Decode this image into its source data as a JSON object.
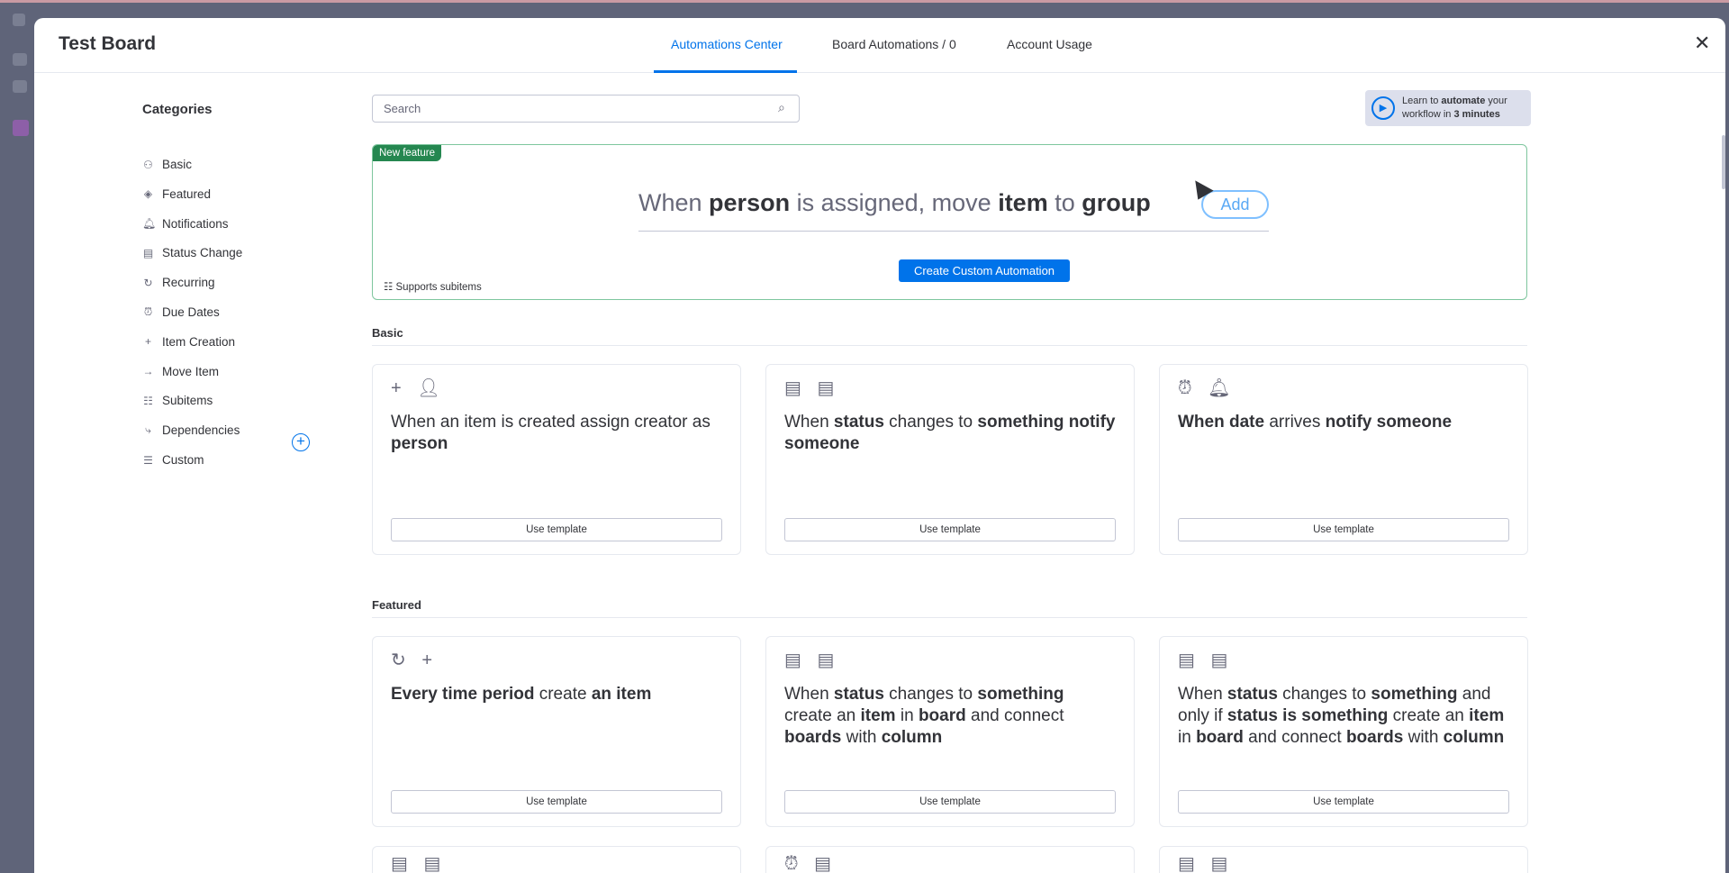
{
  "header": {
    "title": "Test Board",
    "tabs": [
      {
        "label": "Automations Center",
        "active": true
      },
      {
        "label": "Board Automations / 0"
      },
      {
        "label": "Account Usage"
      }
    ],
    "close": "✕"
  },
  "categories": {
    "title": "Categories",
    "items": [
      {
        "label": "Basic",
        "icon": "⚇"
      },
      {
        "label": "Featured",
        "icon": "◈"
      },
      {
        "label": "Notifications",
        "icon": "🔔︎"
      },
      {
        "label": "Status Change",
        "icon": "▤"
      },
      {
        "label": "Recurring",
        "icon": "↻"
      },
      {
        "label": "Due Dates",
        "icon": "⏰︎"
      },
      {
        "label": "Item Creation",
        "icon": "+"
      },
      {
        "label": "Move Item",
        "icon": "→"
      },
      {
        "label": "Subitems",
        "icon": "☷"
      },
      {
        "label": "Dependencies",
        "icon": "⤷"
      },
      {
        "label": "Custom",
        "icon": "☰"
      }
    ],
    "add": "+"
  },
  "search": {
    "placeholder": "Search"
  },
  "learn": {
    "parts": [
      {
        "t": "Learn to "
      },
      {
        "t": "automate",
        "b": true
      },
      {
        "t": " your workflow in "
      },
      {
        "t": "3 minutes",
        "b": true
      }
    ]
  },
  "feature": {
    "badge": "New feature",
    "sentence": [
      {
        "t": "When "
      },
      {
        "t": "person",
        "b": true
      },
      {
        "t": " is assigned, move "
      },
      {
        "t": "item",
        "b": true
      },
      {
        "t": " to "
      },
      {
        "t": "group",
        "b": true
      }
    ],
    "add": "Add",
    "create": "Create Custom Automation",
    "supports": "Supports subitems"
  },
  "sections": [
    {
      "title": "Basic",
      "cards": [
        {
          "icons": "+ 👤︎",
          "text": [
            {
              "t": "When an item is created assign creator as "
            },
            {
              "t": "person",
              "b": true
            }
          ],
          "button": "Use template"
        },
        {
          "icons": "▤ ▤",
          "text": [
            {
              "t": "When "
            },
            {
              "t": "status",
              "b": true
            },
            {
              "t": " changes to "
            },
            {
              "t": "something",
              "b": true
            },
            {
              "t": " "
            },
            {
              "t": "notify someone",
              "b": true
            }
          ],
          "button": "Use template"
        },
        {
          "icons": "⏰︎ 🔔︎",
          "text": [
            {
              "t": "When date",
              "b": true
            },
            {
              "t": " arrives "
            },
            {
              "t": "notify someone",
              "b": true
            }
          ],
          "button": "Use template"
        }
      ]
    },
    {
      "title": "Featured",
      "cards": [
        {
          "icons": "↻ +",
          "text": [
            {
              "t": "Every time period",
              "b": true
            },
            {
              "t": " create "
            },
            {
              "t": "an item",
              "b": true
            }
          ],
          "button": "Use template"
        },
        {
          "icons": "▤ ▤",
          "text": [
            {
              "t": "When "
            },
            {
              "t": "status",
              "b": true
            },
            {
              "t": " changes to "
            },
            {
              "t": "something",
              "b": true
            },
            {
              "t": " create an "
            },
            {
              "t": "item",
              "b": true
            },
            {
              "t": " in "
            },
            {
              "t": "board",
              "b": true
            },
            {
              "t": " and connect "
            },
            {
              "t": "boards",
              "b": true
            },
            {
              "t": " with "
            },
            {
              "t": "column",
              "b": true
            }
          ],
          "button": "Use template"
        },
        {
          "icons": "▤ ▤",
          "text": [
            {
              "t": "When "
            },
            {
              "t": "status",
              "b": true
            },
            {
              "t": " changes to "
            },
            {
              "t": "something",
              "b": true
            },
            {
              "t": " and only if "
            },
            {
              "t": "status",
              "b": true
            },
            {
              "t": " "
            },
            {
              "t": "is something",
              "b": true
            },
            {
              "t": " create an "
            },
            {
              "t": "item",
              "b": true
            },
            {
              "t": " in "
            },
            {
              "t": "board",
              "b": true
            },
            {
              "t": " and connect "
            },
            {
              "t": "boards",
              "b": true
            },
            {
              "t": " with "
            },
            {
              "t": "column",
              "b": true
            }
          ],
          "button": "Use template"
        }
      ]
    },
    {
      "title": "",
      "cards": [
        {
          "icons": "▤ ▤",
          "text": [],
          "button": ""
        },
        {
          "icons": "⏰︎ ▤",
          "text": [],
          "button": ""
        },
        {
          "icons": "▤ ▤",
          "text": [],
          "button": ""
        }
      ]
    }
  ],
  "colors": {
    "accent": "#0073ea",
    "new_feature": "#258750",
    "overlay": "#5f6479"
  }
}
